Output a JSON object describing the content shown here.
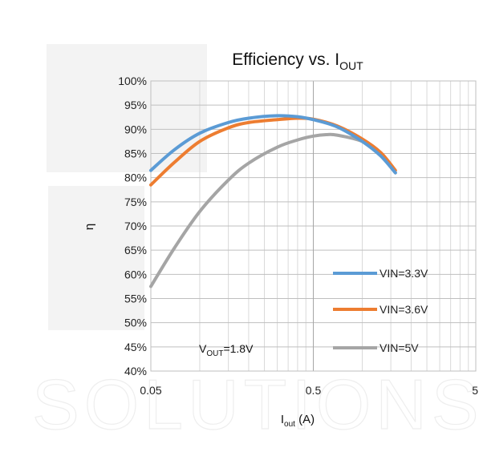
{
  "watermark": {
    "text": "SOLUTIONS"
  },
  "chart_data": {
    "type": "line",
    "title": "Efficiency vs. I",
    "title_sub": "OUT",
    "xlabel": "I",
    "xlabel_sub": "out",
    "xlabel_suffix": " (A)",
    "ylabel": "η",
    "x_scale": "log",
    "xlim": [
      0.05,
      5
    ],
    "ylim": [
      40,
      100
    ],
    "x_ticks": [
      "0.05",
      "0.5",
      "5"
    ],
    "y_ticks": [
      "40%",
      "45%",
      "50%",
      "55%",
      "60%",
      "65%",
      "70%",
      "75%",
      "80%",
      "85%",
      "90%",
      "95%",
      "100%"
    ],
    "grid": true,
    "legend_placement": "bottom-right",
    "annotation": {
      "main": "V",
      "sub": "OUT",
      "suffix": "=1.8V"
    },
    "series": [
      {
        "name": "VIN=3.3V",
        "color": "#5b9bd5",
        "x": [
          0.05,
          0.07,
          0.1,
          0.15,
          0.2,
          0.3,
          0.4,
          0.5,
          0.7,
          1.0,
          1.3,
          1.6
        ],
        "y": [
          81.5,
          85.8,
          89.2,
          91.4,
          92.3,
          92.8,
          92.6,
          92.0,
          90.5,
          87.5,
          84.5,
          81.0
        ]
      },
      {
        "name": "VIN=3.6V",
        "color": "#ed7d31",
        "x": [
          0.05,
          0.07,
          0.1,
          0.15,
          0.2,
          0.3,
          0.4,
          0.5,
          0.7,
          1.0,
          1.3,
          1.6
        ],
        "y": [
          78.5,
          83.2,
          87.5,
          90.3,
          91.4,
          92.0,
          92.3,
          92.1,
          90.7,
          88.0,
          85.2,
          81.5
        ]
      },
      {
        "name": "VIN=5V",
        "color": "#a5a5a5",
        "x": [
          0.05,
          0.07,
          0.1,
          0.15,
          0.2,
          0.3,
          0.4,
          0.5,
          0.6,
          0.7,
          1.0,
          1.3,
          1.6
        ],
        "y": [
          57.5,
          65.5,
          73.0,
          79.5,
          83.0,
          86.3,
          87.8,
          88.6,
          88.9,
          88.8,
          87.5,
          85.0,
          81.0
        ]
      }
    ]
  }
}
